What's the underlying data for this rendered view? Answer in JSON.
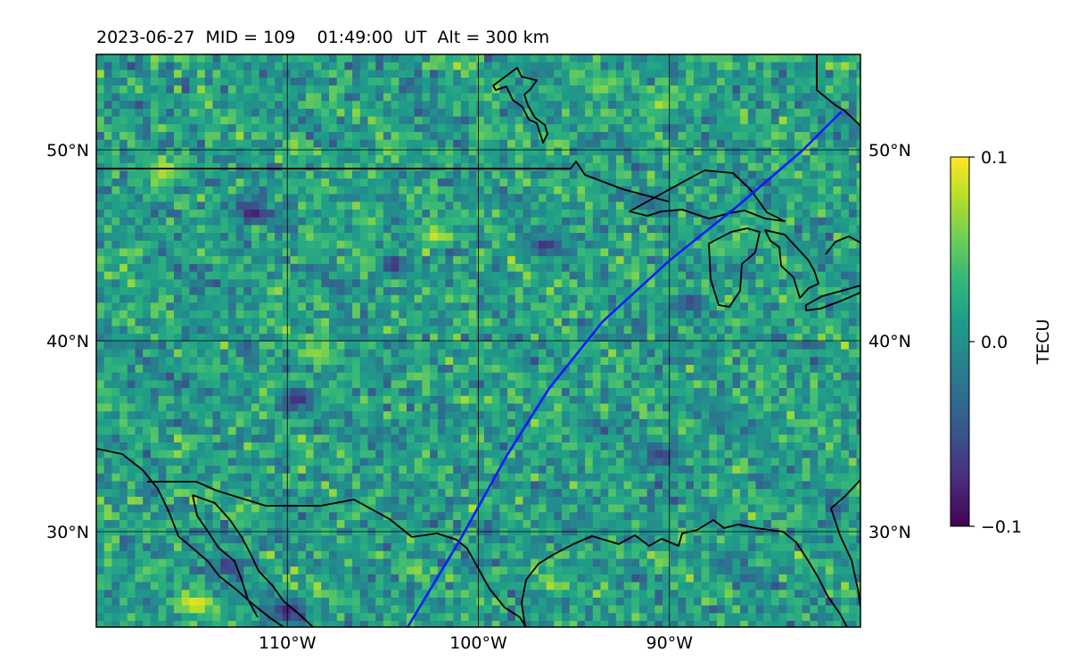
{
  "title": "2023-06-27  MID = 109    01:49:00  UT  Alt = 300 km",
  "map": {
    "lon_range": [
      -120,
      -80
    ],
    "lat_range": [
      25,
      55
    ],
    "gridlines": true,
    "lat_ticks": [
      {
        "value": 50,
        "label": "50°N"
      },
      {
        "value": 40,
        "label": "40°N"
      },
      {
        "value": 30,
        "label": "30°N"
      }
    ],
    "lon_ticks": [
      {
        "value": -110,
        "label": "110°W"
      },
      {
        "value": -100,
        "label": "100°W"
      },
      {
        "value": -90,
        "label": "90°W"
      }
    ],
    "field": "TEC perturbation (noisy raster)",
    "hotspots": [
      {
        "lon": -114.8,
        "lat": 26.2,
        "level": 0.1
      },
      {
        "lon": -102.3,
        "lat": 45.5,
        "level": 0.09
      },
      {
        "lon": -105.2,
        "lat": 44.2,
        "level": 0.09
      },
      {
        "lon": -108.3,
        "lat": 39.3,
        "level": 0.07
      },
      {
        "lon": -116.4,
        "lat": 48.9,
        "level": 0.09
      },
      {
        "lon": -90.5,
        "lat": 52.3,
        "level": 0.08
      },
      {
        "lon": -93.5,
        "lat": 53.3,
        "level": 0.07
      },
      {
        "lon": -104.5,
        "lat": 44.0,
        "level": -0.09
      },
      {
        "lon": -109.5,
        "lat": 37.0,
        "level": -0.09
      },
      {
        "lon": -111.8,
        "lat": 46.7,
        "level": -0.09
      },
      {
        "lon": -113.0,
        "lat": 28.2,
        "level": -0.08
      },
      {
        "lon": -110.0,
        "lat": 25.8,
        "level": -0.1
      },
      {
        "lon": -96.5,
        "lat": 45.0,
        "level": -0.08
      },
      {
        "lon": -89.0,
        "lat": 42.0,
        "level": -0.07
      },
      {
        "lon": -90.4,
        "lat": 34.0,
        "level": -0.07
      }
    ],
    "track_color": "#0b1cff",
    "track": [
      {
        "lon": -103.7,
        "lat": 25.0
      },
      {
        "lon": -101.0,
        "lat": 29.5
      },
      {
        "lon": -98.5,
        "lat": 34.0
      },
      {
        "lon": -96.3,
        "lat": 37.5
      },
      {
        "lon": -93.5,
        "lat": 41.0
      },
      {
        "lon": -90.0,
        "lat": 44.2
      },
      {
        "lon": -86.5,
        "lat": 47.0
      },
      {
        "lon": -83.0,
        "lat": 50.0
      },
      {
        "lon": -81.0,
        "lat": 52.0
      }
    ]
  },
  "colorbar": {
    "label": "TECU",
    "min": -0.1,
    "max": 0.1,
    "tick_labels": [
      "0.1",
      "0.0",
      "−0.1"
    ],
    "colormap": "viridis",
    "stops": [
      "#440154",
      "#482878",
      "#3e4a89",
      "#31688e",
      "#26828e",
      "#1f9e89",
      "#35b779",
      "#6ece58",
      "#b5de2b",
      "#fde725"
    ]
  }
}
